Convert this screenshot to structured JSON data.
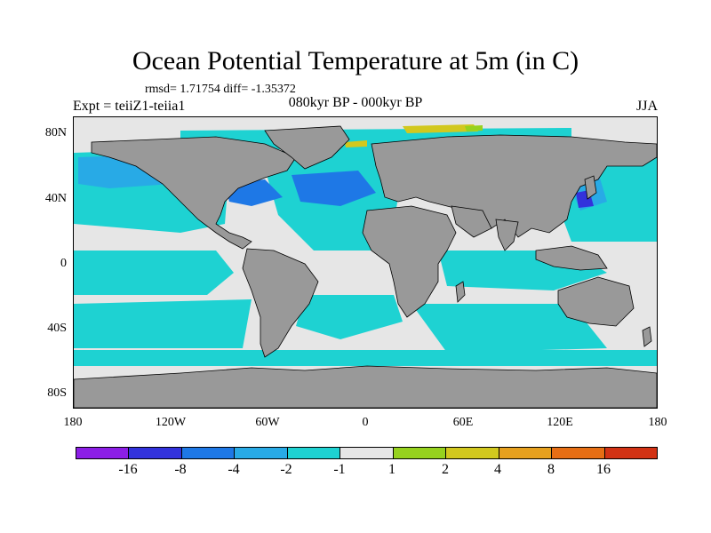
{
  "title": "Ocean Potential Temperature at 5m (in C)",
  "stats": "rmsd= 1.71754 diff= -1.35372",
  "experiment": "Expt = teiiZ1-teiia1",
  "period": "080kyr BP - 000kyr BP",
  "season": "JJA",
  "y_labels": [
    "80N",
    "40N",
    "0",
    "40S",
    "80S"
  ],
  "x_labels": [
    "180",
    "120W",
    "60W",
    "0",
    "60E",
    "120E",
    "180"
  ],
  "colorbar": {
    "colors": [
      "#8c1ee6",
      "#3232dc",
      "#1e78e6",
      "#28aae6",
      "#1ed2d2",
      "#e6e6e6",
      "#96d21e",
      "#d2c81e",
      "#e6a01e",
      "#e66e14",
      "#d23214"
    ],
    "labels": [
      "-16",
      "-8",
      "-4",
      "-2",
      "-1",
      "1",
      "2",
      "4",
      "8",
      "16"
    ]
  },
  "map_colors": {
    "land": "#999999",
    "neutral": "#e6e6e6",
    "cool_light": "#1ed2d2",
    "cool_mid": "#28aae6",
    "cool_strong": "#1e78e6",
    "cool_deep": "#3232dc",
    "warm_light": "#96d21e",
    "warm_mid": "#d2c81e"
  }
}
